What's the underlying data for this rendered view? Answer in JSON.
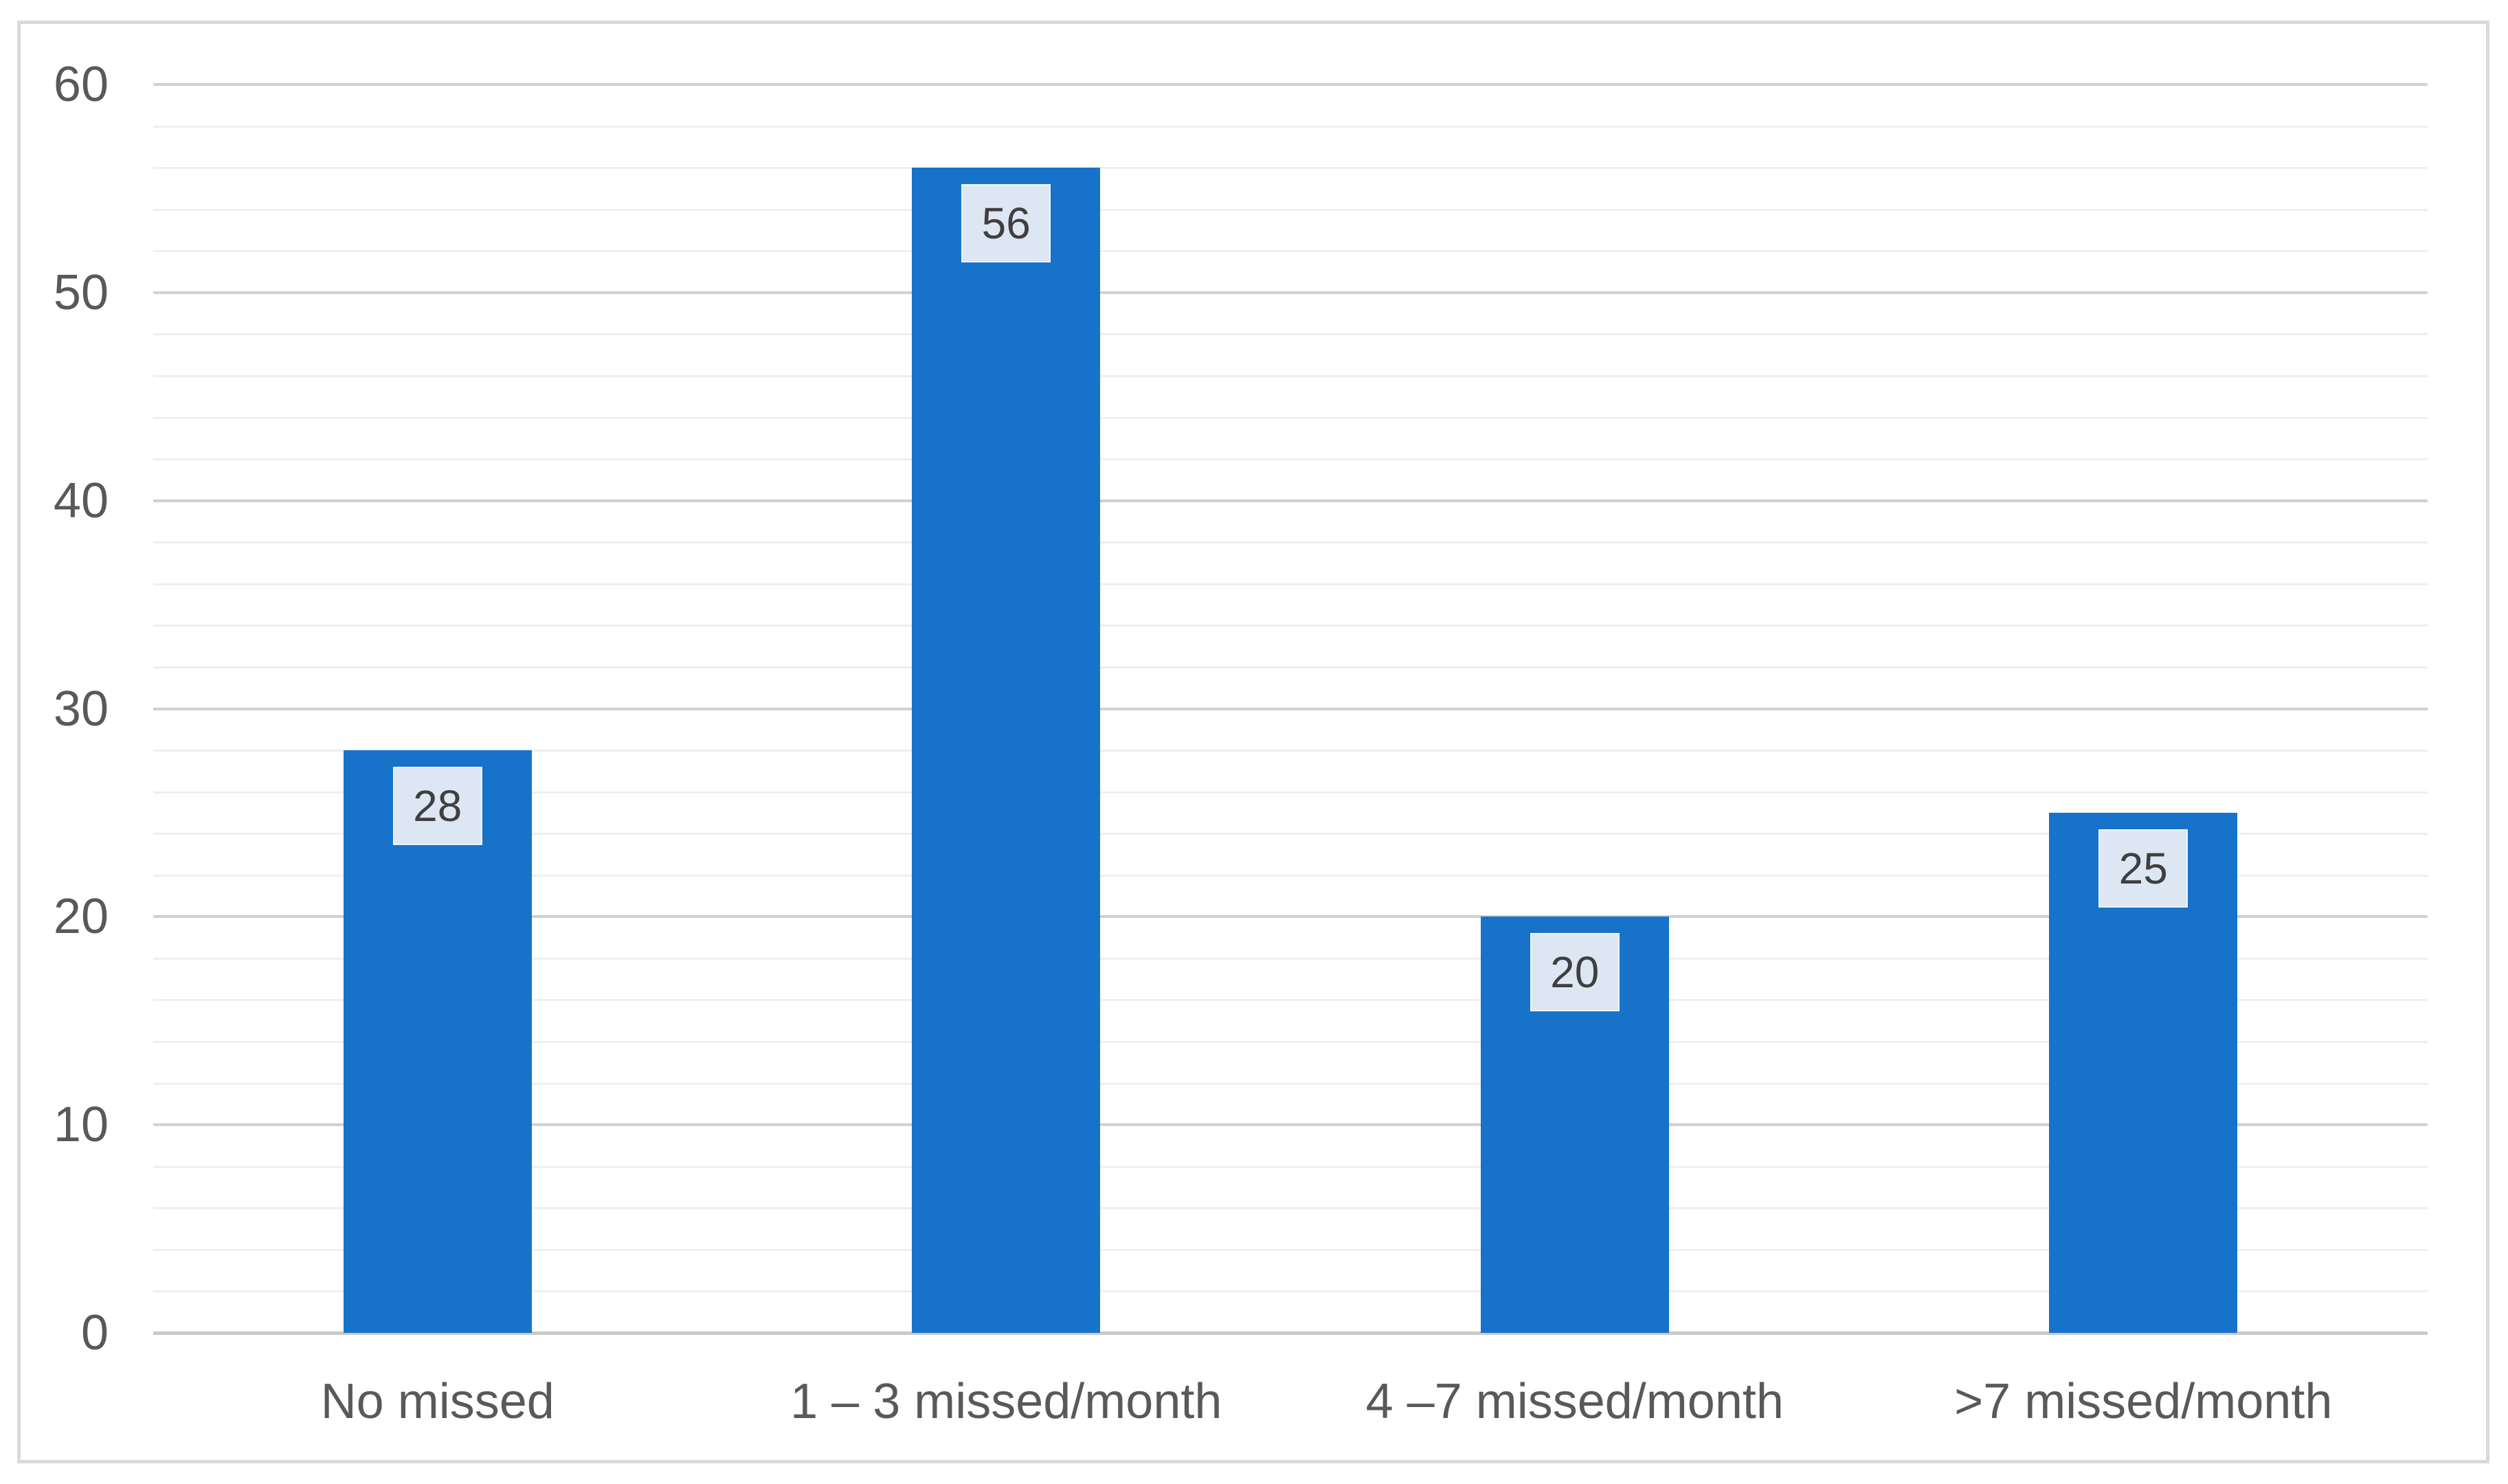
{
  "chart_data": {
    "type": "bar",
    "title": "",
    "categories": [
      "No missed",
      "1 – 3 missed/month",
      "4 –7 missed/month",
      ">7 missed/month"
    ],
    "values": [
      28,
      56,
      20,
      25
    ],
    "data_labels": [
      "28",
      "56",
      "20",
      "25"
    ],
    "xlabel": "",
    "ylabel": "",
    "ylim": [
      0,
      60
    ],
    "y_major_unit": 10,
    "y_minor_unit": 2,
    "y_tick_labels": [
      "0",
      "10",
      "20",
      "30",
      "40",
      "50",
      "60"
    ],
    "legend": "none",
    "grid": {
      "horizontal_major": true,
      "horizontal_minor": true,
      "vertical": false
    },
    "colors": {
      "bar_fill": "#1773c9",
      "data_label_fill": "#dde6f3",
      "data_label_border": "#eff4fb",
      "data_label_text": "#3f3f3f",
      "axis_text": "#595959",
      "gridline_major": "#d0d0d0",
      "gridline_minor": "#efefef",
      "axis_line": "#c9c9c9",
      "chart_border": "#dadada",
      "background": "#ffffff"
    }
  }
}
